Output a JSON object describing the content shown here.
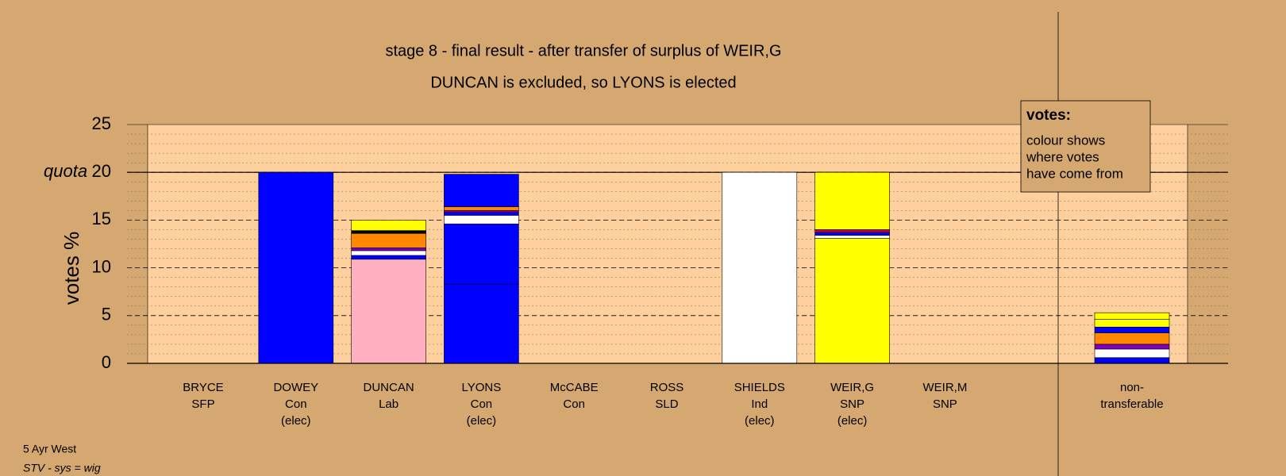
{
  "chart_data": {
    "type": "stacked-bar",
    "title": "stage 8 - final result - after transfer of surplus of WEIR,G",
    "subtitle": "DUNCAN is excluded, so LYONS is elected",
    "ylabel": "votes %",
    "quota_label": "quota",
    "quota": 20,
    "ylim": [
      0,
      25
    ],
    "yticks": [
      0,
      5,
      10,
      15,
      20,
      25
    ],
    "minor_grid_step": 1,
    "grid": true,
    "legend": {
      "title": "votes:",
      "lines": [
        "colour shows",
        "where votes",
        "have come from"
      ]
    },
    "categories": [
      [
        "BRYCE",
        "SFP"
      ],
      [
        "DOWEY",
        "Con",
        "(elec)"
      ],
      [
        "DUNCAN",
        "Lab"
      ],
      [
        "LYONS",
        "Con",
        "(elec)"
      ],
      [
        "McCABE",
        "Con"
      ],
      [
        "ROSS",
        "SLD"
      ],
      [
        "SHIELDS",
        "Ind",
        "(elec)"
      ],
      [
        "WEIR,G",
        "SNP",
        "(elec)"
      ],
      [
        "WEIR,M",
        "SNP"
      ],
      [
        "non-",
        "transferable"
      ]
    ],
    "stacks": [
      [],
      [
        {
          "value": 20,
          "color": "#0000ff"
        }
      ],
      [
        {
          "value": 10.9,
          "color": "#ffb0c0"
        },
        {
          "value": 0.4,
          "color": "#0000ff"
        },
        {
          "value": 0.5,
          "color": "#ffffff"
        },
        {
          "value": 0.3,
          "color": "#8000c0"
        },
        {
          "value": 1.5,
          "color": "#ff8800"
        },
        {
          "value": 0.3,
          "color": "#000000"
        },
        {
          "value": 1.1,
          "color": "#ffff00"
        }
      ],
      [
        {
          "value": 8.3,
          "color": "#0000ff"
        },
        {
          "value": 6.3,
          "color": "#0000ff"
        },
        {
          "value": 0.9,
          "color": "#ffffff"
        },
        {
          "value": 0.3,
          "color": "#0000ff"
        },
        {
          "value": 0.2,
          "color": "#8000c0"
        },
        {
          "value": 0.4,
          "color": "#ff8800"
        },
        {
          "value": 3.4,
          "color": "#0000ff"
        }
      ],
      [],
      [],
      [
        {
          "value": 20,
          "color": "#ffffff"
        }
      ],
      [
        {
          "value": 13.1,
          "color": "#ffff00"
        },
        {
          "value": 0.3,
          "color": "#ffffff"
        },
        {
          "value": 0.3,
          "color": "#0000ff"
        },
        {
          "value": 0.3,
          "color": "#c00040"
        },
        {
          "value": 6.0,
          "color": "#ffff00"
        }
      ],
      [],
      [
        {
          "value": 0.6,
          "color": "#0000ff"
        },
        {
          "value": 0.9,
          "color": "#ffffff"
        },
        {
          "value": 0.5,
          "color": "#8000c0"
        },
        {
          "value": 1.2,
          "color": "#ff8800"
        },
        {
          "value": 0.6,
          "color": "#0000ff"
        },
        {
          "value": 0.8,
          "color": "#ffff00"
        },
        {
          "value": 0.7,
          "color": "#ffff00"
        }
      ]
    ],
    "footer": [
      "5 Ayr West",
      "STV - sys = wig"
    ]
  }
}
